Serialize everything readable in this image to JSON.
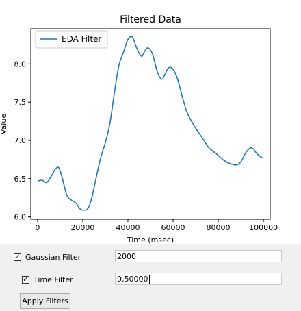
{
  "chart": {
    "title": "Filtered Data",
    "xlabel": "Time (msec)",
    "ylabel": "Value",
    "legend": "EDA Filter",
    "line_color": "#1f77b4"
  },
  "chart_data": {
    "type": "line",
    "title": "Filtered Data",
    "xlabel": "Time (msec)",
    "ylabel": "Value",
    "legend_position": "top-left",
    "grid": false,
    "xlim": [
      -3000,
      103000
    ],
    "ylim": [
      5.97,
      8.46
    ],
    "x_ticks": [
      0,
      20000,
      40000,
      60000,
      80000,
      100000
    ],
    "y_ticks": [
      6.0,
      6.5,
      7.0,
      7.5,
      8.0
    ],
    "x_tick_labels": [
      "0",
      "20000",
      "40000",
      "60000",
      "80000",
      "100000"
    ],
    "y_tick_labels": [
      "6.0",
      "6.5",
      "7.0",
      "7.5",
      "8.0"
    ],
    "series": [
      {
        "name": "EDA Filter",
        "x": [
          0,
          2000,
          4000,
          6000,
          8000,
          9500,
          11000,
          13000,
          15000,
          17000,
          19000,
          21000,
          22500,
          24000,
          26000,
          28000,
          30000,
          32000,
          34000,
          36000,
          38000,
          40000,
          42000,
          44000,
          46000,
          47500,
          49000,
          51000,
          53000,
          55000,
          56500,
          58000,
          60000,
          62000,
          64000,
          66000,
          68000,
          70000,
          73000,
          76000,
          79000,
          82000,
          85000,
          88000,
          90000,
          92000,
          94000,
          95500,
          97000,
          99000,
          100000
        ],
        "y": [
          6.47,
          6.48,
          6.45,
          6.53,
          6.63,
          6.64,
          6.5,
          6.28,
          6.22,
          6.18,
          6.1,
          6.09,
          6.12,
          6.25,
          6.52,
          6.78,
          6.97,
          7.22,
          7.62,
          7.98,
          8.15,
          8.32,
          8.35,
          8.2,
          8.1,
          8.17,
          8.21,
          8.12,
          7.9,
          7.8,
          7.87,
          7.95,
          7.93,
          7.8,
          7.58,
          7.38,
          7.26,
          7.16,
          7.03,
          6.9,
          6.83,
          6.75,
          6.7,
          6.68,
          6.72,
          6.83,
          6.9,
          6.89,
          6.83,
          6.78,
          6.77
        ]
      }
    ]
  },
  "controls": {
    "gaussian": {
      "label": "Gaussian Filter",
      "checked": true,
      "check_mark": "✓",
      "value": "2000"
    },
    "time": {
      "label": "Time Filter",
      "checked": true,
      "check_mark": "✓",
      "value": "0,50000"
    },
    "apply_label": "Apply Filters"
  }
}
